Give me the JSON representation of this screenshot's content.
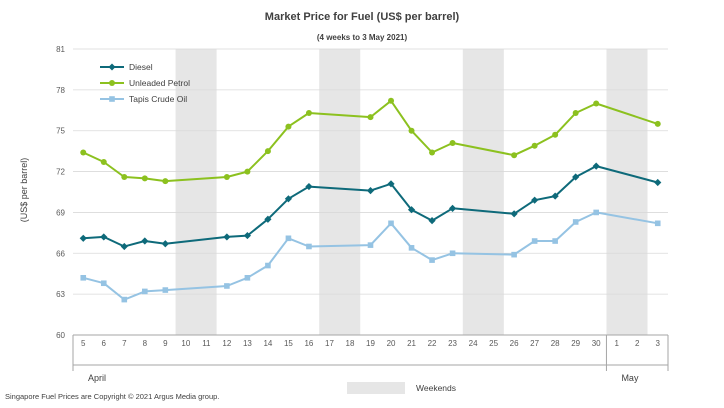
{
  "chart_data": {
    "type": "line",
    "title": "Market Price for Fuel (US$  per barrel)",
    "subtitle": "(4 weeks to 3 May  2021)",
    "ylabel": "(US$ per barrel)",
    "xlabel": "",
    "ylim": [
      60,
      81
    ],
    "yticks": [
      "60",
      "63",
      "66",
      "69",
      "72",
      "75",
      "78",
      "81"
    ],
    "categories": [
      "5",
      "6",
      "7",
      "8",
      "9",
      "10",
      "11",
      "12",
      "13",
      "14",
      "15",
      "16",
      "17",
      "18",
      "19",
      "20",
      "21",
      "22",
      "23",
      "24",
      "25",
      "26",
      "27",
      "28",
      "29",
      "30",
      "1",
      "2",
      "3"
    ],
    "months": [
      {
        "label": "April",
        "start": "5",
        "end": "30"
      },
      {
        "label": "May",
        "start": "1",
        "end": "3"
      }
    ],
    "weekends": [
      [
        "10",
        "11"
      ],
      [
        "17",
        "18"
      ],
      [
        "24",
        "25"
      ],
      [
        "1",
        "2"
      ]
    ],
    "weekend_label": "Weekends",
    "series": [
      {
        "name": "Diesel",
        "color": "#0e6a7a",
        "marker": "diamond",
        "values": [
          67.1,
          67.2,
          66.5,
          66.9,
          66.7,
          null,
          null,
          67.2,
          67.3,
          68.5,
          70.0,
          70.9,
          null,
          null,
          70.6,
          71.1,
          69.2,
          68.4,
          69.3,
          null,
          null,
          68.9,
          69.9,
          70.2,
          71.6,
          72.4,
          null,
          null,
          71.2
        ]
      },
      {
        "name": "Unleaded Petrol",
        "color": "#8cc11f",
        "marker": "circle",
        "values": [
          73.4,
          72.7,
          71.6,
          71.5,
          71.3,
          null,
          null,
          71.6,
          72.0,
          73.5,
          75.3,
          76.3,
          null,
          null,
          76.0,
          77.2,
          75.0,
          73.4,
          74.1,
          null,
          null,
          73.2,
          73.9,
          74.7,
          76.3,
          77.0,
          null,
          null,
          75.5
        ]
      },
      {
        "name": "Tapis Crude Oil",
        "color": "#95c3e3",
        "marker": "square",
        "values": [
          64.2,
          63.8,
          62.6,
          63.2,
          63.3,
          null,
          null,
          63.6,
          64.2,
          65.1,
          67.1,
          66.5,
          null,
          null,
          66.6,
          68.2,
          66.4,
          65.5,
          66.0,
          null,
          null,
          65.9,
          66.9,
          66.9,
          68.3,
          69.0,
          null,
          null,
          68.2
        ]
      }
    ]
  },
  "footer": {
    "copyright": "Singapore  Fuel Prices are Copyright  © 2021  Argus Media group."
  }
}
